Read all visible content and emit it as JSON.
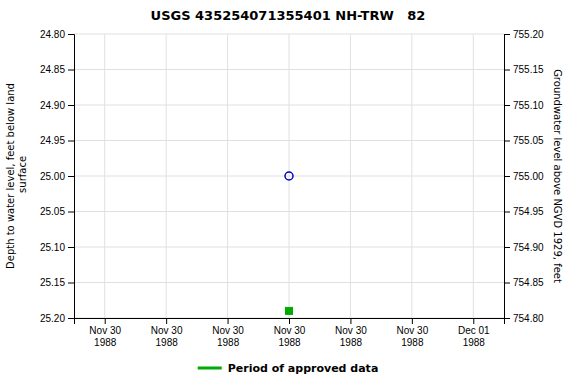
{
  "chart_data": {
    "type": "scatter",
    "title": "USGS 435254071355401 NH-TRW   82",
    "y_label": "Depth to water level, feet below land\n surface",
    "y2_label": "Groundwater level above NGVD 1929, feet",
    "categories": [
      "Nov 30\n1988",
      "Nov 30\n1988",
      "Nov 30\n1988",
      "Nov 30\n1988",
      "Nov 30\n1988",
      "Nov 30\n1988",
      "Dec 01\n1988"
    ],
    "series": [
      {
        "color": "#0000cc",
        "marker": "circle-open",
        "values": [
          null,
          null,
          null,
          25.0,
          null,
          null,
          null
        ]
      },
      {
        "name": "Period of approved data",
        "color": "#00aa00",
        "marker": "square",
        "values": [
          null,
          null,
          null,
          25.19,
          null,
          null,
          null
        ]
      }
    ],
    "ylim": [
      25.2,
      24.8
    ],
    "yticks": [
      {
        "value": 24.8,
        "label": "24.80"
      },
      {
        "value": 24.85,
        "label": "24.85"
      },
      {
        "value": 24.9,
        "label": "24.90"
      },
      {
        "value": 24.95,
        "label": "24.95"
      },
      {
        "value": 25.0,
        "label": "25.00"
      },
      {
        "value": 25.05,
        "label": "25.05"
      },
      {
        "value": 25.1,
        "label": "25.10"
      },
      {
        "value": 25.15,
        "label": "25.15"
      },
      {
        "value": 25.2,
        "label": "25.20"
      }
    ],
    "y2lim": [
      754.8,
      755.2
    ],
    "y2ticks": [
      {
        "value": 755.2,
        "label": "755.20"
      },
      {
        "value": 755.15,
        "label": "755.15"
      },
      {
        "value": 755.1,
        "label": "755.10"
      },
      {
        "value": 755.05,
        "label": "755.05"
      },
      {
        "value": 755.0,
        "label": "755.00"
      },
      {
        "value": 754.95,
        "label": "754.95"
      },
      {
        "value": 754.9,
        "label": "754.90"
      },
      {
        "value": 754.85,
        "label": "754.85"
      },
      {
        "value": 754.8,
        "label": "754.80"
      }
    ],
    "grid": true,
    "legend": "bottom"
  }
}
